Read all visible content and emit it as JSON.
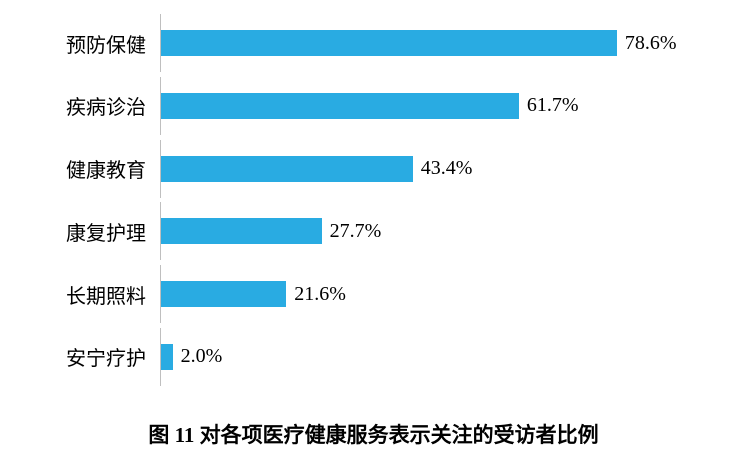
{
  "chart_data": {
    "type": "bar",
    "orientation": "horizontal",
    "title": "图 11 对各项医疗健康服务表示关注的受访者比例",
    "categories": [
      "预防保健",
      "疾病诊治",
      "健康教育",
      "康复护理",
      "长期照料",
      "安宁疗护"
    ],
    "values": [
      78.6,
      61.7,
      43.4,
      27.7,
      21.6,
      2.0
    ],
    "value_labels": [
      "78.6%",
      "61.7%",
      "43.4%",
      "27.7%",
      "21.6%",
      "2.0%"
    ],
    "xlabel": "",
    "ylabel": "",
    "xlim": [
      0,
      100
    ],
    "grid": false,
    "legend": false,
    "bar_color": "#29ABE2",
    "axis_line_color": "#bfbfbf"
  }
}
